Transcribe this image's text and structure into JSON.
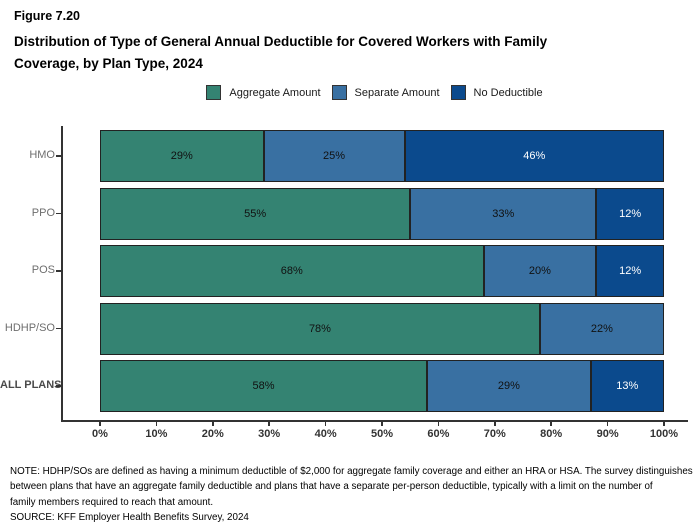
{
  "figure": {
    "number": "Figure 7.20",
    "title_lines": [
      "Distribution of Type of General Annual Deductible for Covered Workers with Family",
      "Coverage, by Plan Type, 2024"
    ]
  },
  "colors": {
    "aggregate_green": "#348372",
    "separate_blue": "#3970A2",
    "no_deductible_navy": "#0B4A8D",
    "bar_border": "#222222",
    "axis": "#333333"
  },
  "chart_data": {
    "type": "bar",
    "orientation": "horizontal",
    "stacked": true,
    "title": "Distribution of Type of General Annual Deductible for Covered Workers with Family Coverage, by Plan Type, 2024",
    "categories": [
      "HMO",
      "PPO",
      "POS",
      "HDHP/SO",
      "ALL PLANS"
    ],
    "emphasized_category": "ALL PLANS",
    "series": [
      {
        "name": "Aggregate Amount",
        "color": "#348372",
        "label_color": "#111111",
        "values": [
          29,
          55,
          68,
          78,
          58
        ]
      },
      {
        "name": "Separate Amount",
        "color": "#3970A2",
        "label_color": "#111111",
        "values": [
          25,
          33,
          20,
          22,
          29
        ]
      },
      {
        "name": "No Deductible",
        "color": "#0B4A8D",
        "label_color": "#ffffff",
        "values": [
          46,
          12,
          12,
          0,
          13
        ]
      }
    ],
    "value_suffix": "%",
    "xlim": [
      0,
      100
    ],
    "x_tick_labels": [
      "0%",
      "10%",
      "20%",
      "30%",
      "40%",
      "50%",
      "60%",
      "70%",
      "80%",
      "90%",
      "100%"
    ],
    "legend_position": "top",
    "grid": false
  },
  "note": {
    "lines": [
      "NOTE: HDHP/SOs are defined as having a minimum deductible of $2,000 for aggregate family coverage and either an HRA or HSA. The survey distinguishes",
      "between plans that have an aggregate family deductible and plans that have a separate per-person deductible, typically with a limit on the number of",
      "family members required to reach that amount."
    ],
    "source": "SOURCE: KFF Employer Health Benefits Survey, 2024"
  }
}
